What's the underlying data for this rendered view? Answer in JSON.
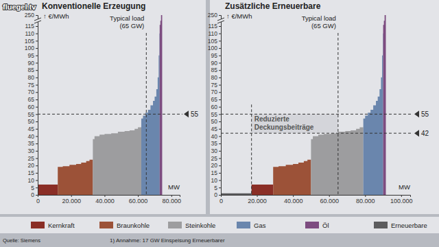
{
  "chart_data": [
    {
      "type": "area",
      "title": "Konventionelle Erzeugung",
      "y_label": "↑ €/MWh",
      "x_label": "MW",
      "xlim": [
        0,
        85000
      ],
      "xticks": [
        0,
        {
          "value": 20000,
          "label": "20.000"
        },
        {
          "value": 40000,
          "label": "40.000"
        },
        {
          "value": 60000,
          "label": "60.000"
        },
        {
          "value": 80000,
          "label": "80.000"
        }
      ],
      "ylim": [
        0,
        250
      ],
      "yticks": [
        0,
        5,
        10,
        15,
        20,
        25,
        30,
        35,
        40,
        45,
        50,
        55,
        60,
        65,
        70,
        75,
        80,
        85,
        90,
        95,
        100,
        105,
        110,
        115,
        250
      ],
      "series": [
        {
          "color": "#8a2e26",
          "x": [
            0,
            12000
          ],
          "values": [
            7,
            7
          ]
        },
        {
          "color": "#9c5238",
          "x": [
            12000,
            15000,
            19000,
            23000,
            26000,
            29000,
            31000,
            33000
          ],
          "values": [
            19,
            19.5,
            20.5,
            21,
            22,
            23,
            24,
            24
          ]
        },
        {
          "color": "#9d9d9f",
          "x": [
            33000,
            34000,
            37000,
            40000,
            44000,
            48000,
            52000,
            55000,
            58000,
            60000,
            62000
          ],
          "values": [
            38,
            40,
            41,
            41.5,
            42,
            43,
            43.5,
            44,
            45,
            46,
            46
          ]
        },
        {
          "color": "#6a86ad",
          "x": [
            62000,
            63000,
            64500,
            66000,
            67500,
            69000,
            70000,
            71000,
            71800,
            72400,
            72800,
            73000
          ],
          "values": [
            52,
            54,
            56,
            58,
            61,
            64,
            67,
            72,
            80,
            95,
            110,
            110
          ]
        },
        {
          "color": "#7d4c80",
          "x": [
            73000,
            73400,
            73800,
            74500
          ],
          "values": [
            130,
            180,
            250,
            250
          ]
        }
      ],
      "vlines": [
        {
          "value": 65000,
          "label": [
            "Typical load",
            "(65 GW)"
          ]
        }
      ],
      "hlines": [
        {
          "value": 55,
          "label": "55"
        }
      ]
    },
    {
      "type": "area",
      "title": "Zusätzliche Erneuerbare",
      "y_label": "↑ €/MWh",
      "x_label": "MW",
      "xlim": [
        0,
        105000
      ],
      "xticks": [
        0,
        {
          "value": 20000,
          "label": "20.000"
        },
        {
          "value": 40000,
          "label": "40.000"
        },
        {
          "value": 60000,
          "label": "60.000"
        },
        {
          "value": 80000,
          "label": "80.000"
        },
        {
          "value": 100000,
          "label": "100.000"
        }
      ],
      "ylim": [
        0,
        250
      ],
      "yticks": [
        0,
        5,
        10,
        15,
        20,
        25,
        30,
        35,
        40,
        45,
        50,
        55,
        60,
        65,
        70,
        75,
        80,
        85,
        90,
        95,
        100,
        105,
        110,
        115,
        250
      ],
      "series": [
        {
          "name": "Kernkraft",
          "color": "#8a2e26",
          "x": [
            17000,
            29000
          ],
          "values": [
            7,
            7
          ]
        },
        {
          "name": "Braunkohle",
          "color": "#9c5238",
          "x": [
            29000,
            32000,
            36000,
            40000,
            43000,
            46000,
            48000,
            50000
          ],
          "values": [
            19,
            19.5,
            20.5,
            21,
            22,
            23,
            24,
            24
          ]
        },
        {
          "name": "Steinkohle",
          "color": "#9d9d9f",
          "x": [
            50000,
            51000,
            54000,
            57000,
            61000,
            65000,
            69000,
            72000,
            75000,
            77000,
            79000
          ],
          "values": [
            38,
            40,
            41,
            41.5,
            42,
            43,
            43.5,
            44,
            45,
            46,
            46
          ]
        },
        {
          "name": "Gas",
          "color": "#6a86ad",
          "x": [
            79000,
            80000,
            81500,
            83000,
            84500,
            86000,
            87000,
            88000,
            88800,
            89400,
            89800,
            90000
          ],
          "values": [
            52,
            54,
            56,
            58,
            61,
            64,
            67,
            72,
            80,
            95,
            110,
            110
          ]
        },
        {
          "name": "Öl",
          "color": "#7d4c80",
          "x": [
            90000,
            90400,
            90800,
            91500
          ],
          "values": [
            130,
            180,
            250,
            250
          ]
        },
        {
          "name": "Erneuerbare",
          "color": "#5c5c5e",
          "x": [
            0,
            17000
          ],
          "values": [
            1,
            1
          ]
        }
      ],
      "vlines": [
        {
          "value": 17000
        },
        {
          "value": 65000,
          "label": [
            "Typical load",
            "(65 GW)"
          ]
        }
      ],
      "hlines": [
        {
          "value": 55,
          "label": "55"
        },
        {
          "value": 42,
          "label": "42"
        }
      ],
      "shaded_region": {
        "x": [
          17000,
          65000
        ],
        "y": [
          42,
          55
        ],
        "label": [
          "Reduzierte",
          "Deckungsbeiträge"
        ]
      }
    }
  ],
  "page": {
    "watermark": "fluegel.tv",
    "source": "Quelle: Siemens",
    "footnote": "1) Annahme: 17 GW Einspeisung Erneuerbarer"
  }
}
